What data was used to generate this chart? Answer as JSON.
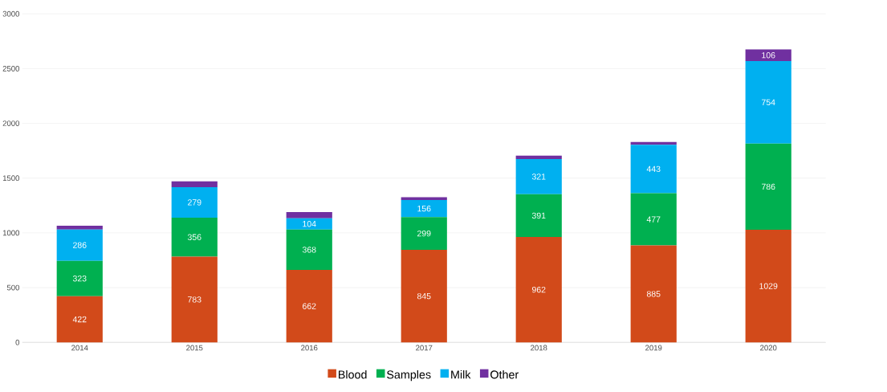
{
  "chart_data": {
    "type": "bar",
    "stacked": true,
    "categories": [
      "2014",
      "2015",
      "2016",
      "2017",
      "2018",
      "2019",
      "2020"
    ],
    "series": [
      {
        "name": "Blood",
        "color": "#d24a1a",
        "values": [
          422,
          783,
          662,
          845,
          962,
          885,
          1029
        ],
        "value_labels": [
          "422",
          "783",
          "662",
          "845",
          "962",
          "885",
          "1029"
        ]
      },
      {
        "name": "Samples",
        "color": "#00b050",
        "values": [
          323,
          356,
          368,
          299,
          391,
          477,
          786
        ],
        "value_labels": [
          "323",
          "356",
          "368",
          "299",
          "391",
          "477",
          "786"
        ]
      },
      {
        "name": "Milk",
        "color": "#00b0f0",
        "values": [
          286,
          279,
          104,
          156,
          321,
          443,
          754
        ],
        "value_labels": [
          "286",
          "279",
          "104",
          "156",
          "321",
          "443",
          "754"
        ]
      },
      {
        "name": "Other",
        "color": "#7030a0",
        "values": [
          34,
          52,
          56,
          25,
          31,
          25,
          106
        ],
        "value_labels": [
          null,
          null,
          null,
          null,
          null,
          null,
          "106"
        ]
      }
    ],
    "ylim": [
      0,
      3000
    ],
    "yticks": [
      0,
      500,
      1000,
      1500,
      2000,
      2500,
      3000
    ],
    "grid": "y",
    "legend": "bottom"
  }
}
